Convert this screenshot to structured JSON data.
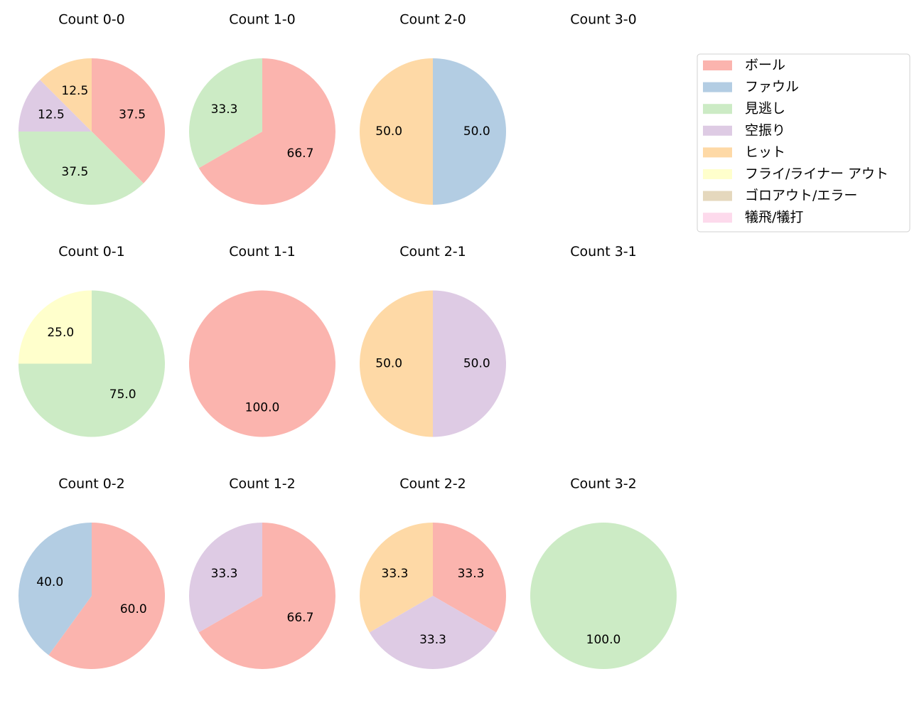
{
  "legend": {
    "entries": [
      "ボール",
      "ファウル",
      "見逃し",
      "空振り",
      "ヒット",
      "フライ/ライナー アウト",
      "ゴロアウト/エラー",
      "犠飛/犠打"
    ],
    "colors": [
      "#fbb4ae",
      "#b3cde3",
      "#ccebc5",
      "#decbe4",
      "#fed9a6",
      "#ffffcc",
      "#e5d8bd",
      "#fddaec"
    ]
  },
  "chart_data": [
    {
      "type": "pie",
      "title": "Count 0-0",
      "categories": [
        "ボール",
        "見逃し",
        "空振り",
        "ヒット"
      ],
      "values": [
        37.5,
        37.5,
        12.5,
        12.5
      ],
      "value_labels": [
        "37.5",
        "37.5",
        "12.5",
        "12.5"
      ]
    },
    {
      "type": "pie",
      "title": "Count 1-0",
      "categories": [
        "ボール",
        "見逃し"
      ],
      "values": [
        66.7,
        33.3
      ],
      "value_labels": [
        "66.7",
        "33.3"
      ]
    },
    {
      "type": "pie",
      "title": "Count 2-0",
      "categories": [
        "ファウル",
        "ヒット"
      ],
      "values": [
        50,
        50
      ],
      "value_labels": [
        "50.0",
        "50.0"
      ]
    },
    {
      "type": "pie",
      "title": "Count 3-0"
    },
    {
      "type": "pie",
      "title": "Count 0-1",
      "categories": [
        "見逃し",
        "フライ/ライナー アウト"
      ],
      "values": [
        75,
        25
      ],
      "value_labels": [
        "75.0",
        "25.0"
      ]
    },
    {
      "type": "pie",
      "title": "Count 1-1",
      "categories": [
        "ボール"
      ],
      "values": [
        100
      ],
      "value_labels": [
        "100.0"
      ]
    },
    {
      "type": "pie",
      "title": "Count 2-1",
      "categories": [
        "空振り",
        "ヒット"
      ],
      "values": [
        50,
        50
      ],
      "value_labels": [
        "50.0",
        "50.0"
      ]
    },
    {
      "type": "pie",
      "title": "Count 3-1"
    },
    {
      "type": "pie",
      "title": "Count 0-2",
      "categories": [
        "ボール",
        "ファウル"
      ],
      "values": [
        60,
        40
      ],
      "value_labels": [
        "60.0",
        "40.0"
      ]
    },
    {
      "type": "pie",
      "title": "Count 1-2",
      "categories": [
        "ボール",
        "空振り"
      ],
      "values": [
        66.7,
        33.3
      ],
      "value_labels": [
        "66.7",
        "33.3"
      ]
    },
    {
      "type": "pie",
      "title": "Count 2-2",
      "categories": [
        "ボール",
        "空振り",
        "ヒット"
      ],
      "values": [
        33.3,
        33.3,
        33.3
      ],
      "value_labels": [
        "33.3",
        "33.3",
        "33.3"
      ]
    },
    {
      "type": "pie",
      "title": "Count 3-2",
      "categories": [
        "見逃し"
      ],
      "values": [
        100
      ],
      "value_labels": [
        "100.0"
      ]
    }
  ]
}
